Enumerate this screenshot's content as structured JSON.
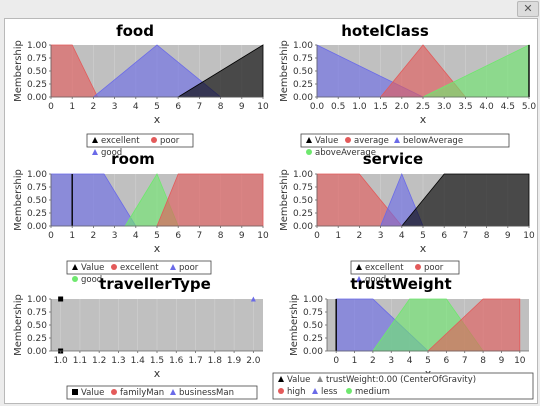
{
  "window": {
    "close_glyph": "✕"
  },
  "chart_data": [
    {
      "type": "area",
      "title": "food",
      "xlabel": "x",
      "ylabel": "Membership",
      "xlim": [
        0,
        10
      ],
      "ylim": [
        0,
        1
      ],
      "xticks": [
        "0",
        "1",
        "2",
        "3",
        "4",
        "5",
        "6",
        "7",
        "8",
        "9",
        "10"
      ],
      "yticks": [
        "0.00",
        "0.25",
        "0.50",
        "0.75",
        "1.00"
      ],
      "legend_position": "bottom",
      "legend": [
        {
          "label": "excellent",
          "shape": "triangle",
          "color": "#000000"
        },
        {
          "label": "poor",
          "shape": "circle",
          "color": "#e35a5a"
        },
        {
          "label": "good",
          "shape": "triangle",
          "color": "#6a6ae8"
        }
      ],
      "series": [
        {
          "color": "#e35a5a",
          "points": [
            [
              0,
              1
            ],
            [
              1,
              1
            ],
            [
              2.2,
              0
            ]
          ]
        },
        {
          "color": "#6a6ae8",
          "points": [
            [
              2,
              0
            ],
            [
              5,
              1
            ],
            [
              8,
              0
            ]
          ]
        },
        {
          "color": "#000000",
          "points": [
            [
              6,
              0
            ],
            [
              10,
              1
            ],
            [
              10,
              0
            ]
          ]
        }
      ]
    },
    {
      "type": "area",
      "title": "hotelClass",
      "xlabel": "x",
      "ylabel": "Membership",
      "xlim": [
        0,
        5
      ],
      "ylim": [
        0,
        1
      ],
      "xticks": [
        "0.0",
        "0.5",
        "1.0",
        "1.5",
        "2.0",
        "2.5",
        "3.0",
        "3.5",
        "4.0",
        "4.5",
        "5.0"
      ],
      "yticks": [
        "0.00",
        "0.25",
        "0.50",
        "0.75",
        "1.00"
      ],
      "legend_position": "bottom",
      "legend": [
        {
          "label": "Value",
          "shape": "triangle",
          "color": "#000000"
        },
        {
          "label": "average",
          "shape": "circle",
          "color": "#e35a5a"
        },
        {
          "label": "belowAverage",
          "shape": "triangle",
          "color": "#6a6ae8"
        },
        {
          "label": "aboveAverage",
          "shape": "circle",
          "color": "#6ee86e"
        }
      ],
      "series": [
        {
          "color": "#6a6ae8",
          "points": [
            [
              0,
              1
            ],
            [
              2.5,
              0
            ]
          ]
        },
        {
          "color": "#e35a5a",
          "points": [
            [
              1.5,
              0
            ],
            [
              2.5,
              1
            ],
            [
              3.5,
              0
            ]
          ]
        },
        {
          "color": "#6ee86e",
          "points": [
            [
              2.5,
              0
            ],
            [
              5,
              1
            ],
            [
              5,
              0
            ]
          ]
        }
      ],
      "markers": [
        {
          "x": 5.0,
          "color": "#000000"
        }
      ]
    },
    {
      "type": "area",
      "title": "room",
      "xlabel": "x",
      "ylabel": "Membership",
      "xlim": [
        0,
        10
      ],
      "ylim": [
        0,
        1
      ],
      "xticks": [
        "0",
        "1",
        "2",
        "3",
        "4",
        "5",
        "6",
        "7",
        "8",
        "9",
        "10"
      ],
      "yticks": [
        "0.00",
        "0.25",
        "0.50",
        "0.75",
        "1.00"
      ],
      "legend_position": "bottom",
      "legend": [
        {
          "label": "Value",
          "shape": "triangle",
          "color": "#000000"
        },
        {
          "label": "excellent",
          "shape": "circle",
          "color": "#e35a5a"
        },
        {
          "label": "poor",
          "shape": "triangle",
          "color": "#6a6ae8"
        },
        {
          "label": "good",
          "shape": "circle",
          "color": "#6ee86e"
        }
      ],
      "series": [
        {
          "color": "#6a6ae8",
          "points": [
            [
              0,
              1
            ],
            [
              2.5,
              1
            ],
            [
              4,
              0
            ]
          ]
        },
        {
          "color": "#6ee86e",
          "points": [
            [
              3.5,
              0
            ],
            [
              5,
              1
            ],
            [
              6,
              0
            ]
          ]
        },
        {
          "color": "#e35a5a",
          "points": [
            [
              5,
              0
            ],
            [
              6,
              1
            ],
            [
              10,
              1
            ],
            [
              10,
              0
            ]
          ]
        }
      ],
      "markers": [
        {
          "x": 1.0,
          "color": "#000000"
        }
      ]
    },
    {
      "type": "area",
      "title": "service",
      "xlabel": "x",
      "ylabel": "Membership",
      "xlim": [
        0,
        10
      ],
      "ylim": [
        0,
        1
      ],
      "xticks": [
        "0",
        "1",
        "2",
        "3",
        "4",
        "5",
        "6",
        "7",
        "8",
        "9",
        "10"
      ],
      "yticks": [
        "0.00",
        "0.25",
        "0.50",
        "0.75",
        "1.00"
      ],
      "legend_position": "bottom",
      "legend": [
        {
          "label": "excellent",
          "shape": "triangle",
          "color": "#000000"
        },
        {
          "label": "poor",
          "shape": "circle",
          "color": "#e35a5a"
        },
        {
          "label": "good",
          "shape": "triangle",
          "color": "#6a6ae8"
        }
      ],
      "series": [
        {
          "color": "#e35a5a",
          "points": [
            [
              0,
              1
            ],
            [
              2,
              1
            ],
            [
              4,
              0
            ]
          ]
        },
        {
          "color": "#6a6ae8",
          "points": [
            [
              3,
              0
            ],
            [
              4,
              1
            ],
            [
              5,
              0
            ]
          ]
        },
        {
          "color": "#000000",
          "points": [
            [
              4,
              0
            ],
            [
              6,
              1
            ],
            [
              10,
              1
            ],
            [
              10,
              0
            ]
          ]
        }
      ]
    },
    {
      "type": "scatter",
      "title": "travellerType",
      "xlabel": "x",
      "ylabel": "Membership",
      "xlim": [
        0.95,
        2.05
      ],
      "ylim": [
        0,
        1
      ],
      "xticks": [
        "1.0",
        "1.1",
        "1.2",
        "1.3",
        "1.4",
        "1.5",
        "1.6",
        "1.7",
        "1.8",
        "1.9",
        "2.0"
      ],
      "xtick_values": [
        1.0,
        1.1,
        1.2,
        1.3,
        1.4,
        1.5,
        1.6,
        1.7,
        1.8,
        1.9,
        2.0
      ],
      "yticks": [
        "0.00",
        "0.25",
        "0.50",
        "0.75",
        "1.00"
      ],
      "legend_position": "bottom",
      "legend": [
        {
          "label": "Value",
          "shape": "square",
          "color": "#000000"
        },
        {
          "label": "familyMan",
          "shape": "circle",
          "color": "#e35a5a"
        },
        {
          "label": "businessMan",
          "shape": "triangle",
          "color": "#6a6ae8"
        }
      ],
      "points": [
        {
          "x": 1.0,
          "y": 1.0,
          "shape": "square",
          "color": "#000000"
        },
        {
          "x": 1.0,
          "y": 0.0,
          "shape": "square",
          "color": "#000000"
        },
        {
          "x": 2.0,
          "y": 1.0,
          "shape": "triangle",
          "color": "#6a6ae8"
        }
      ]
    },
    {
      "type": "area",
      "title": "trustWeight",
      "xlabel": "x",
      "ylabel": "Membership",
      "xlim": [
        -0.5,
        10.5
      ],
      "ylim": [
        0,
        1
      ],
      "xticks": [
        "0",
        "1",
        "2",
        "3",
        "4",
        "5",
        "6",
        "7",
        "8",
        "9",
        "10"
      ],
      "xtick_values": [
        0,
        1,
        2,
        3,
        4,
        5,
        6,
        7,
        8,
        9,
        10
      ],
      "yticks": [
        "0.00",
        "0.25",
        "0.50",
        "0.75",
        "1.00"
      ],
      "legend_position": "bottom",
      "legend": [
        {
          "label": "Value",
          "shape": "triangle",
          "color": "#000000"
        },
        {
          "label": "trustWeight:0.00 (CenterOfGravity)",
          "shape": "triangle",
          "color": "#888888"
        },
        {
          "label": "high",
          "shape": "circle",
          "color": "#e35a5a"
        },
        {
          "label": "less",
          "shape": "triangle",
          "color": "#6a6ae8"
        },
        {
          "label": "medium",
          "shape": "circle",
          "color": "#6ee86e"
        }
      ],
      "series": [
        {
          "color": "#6a6ae8",
          "points": [
            [
              0,
              1
            ],
            [
              2,
              1
            ],
            [
              5,
              0
            ]
          ]
        },
        {
          "color": "#6ee86e",
          "points": [
            [
              2,
              0
            ],
            [
              4,
              1
            ],
            [
              6,
              1
            ],
            [
              8,
              0
            ]
          ]
        },
        {
          "color": "#e35a5a",
          "points": [
            [
              5,
              0
            ],
            [
              8,
              1
            ],
            [
              10,
              1
            ],
            [
              10,
              0
            ]
          ]
        }
      ],
      "markers": [
        {
          "x": 0.0,
          "color": "#000000"
        }
      ]
    }
  ]
}
